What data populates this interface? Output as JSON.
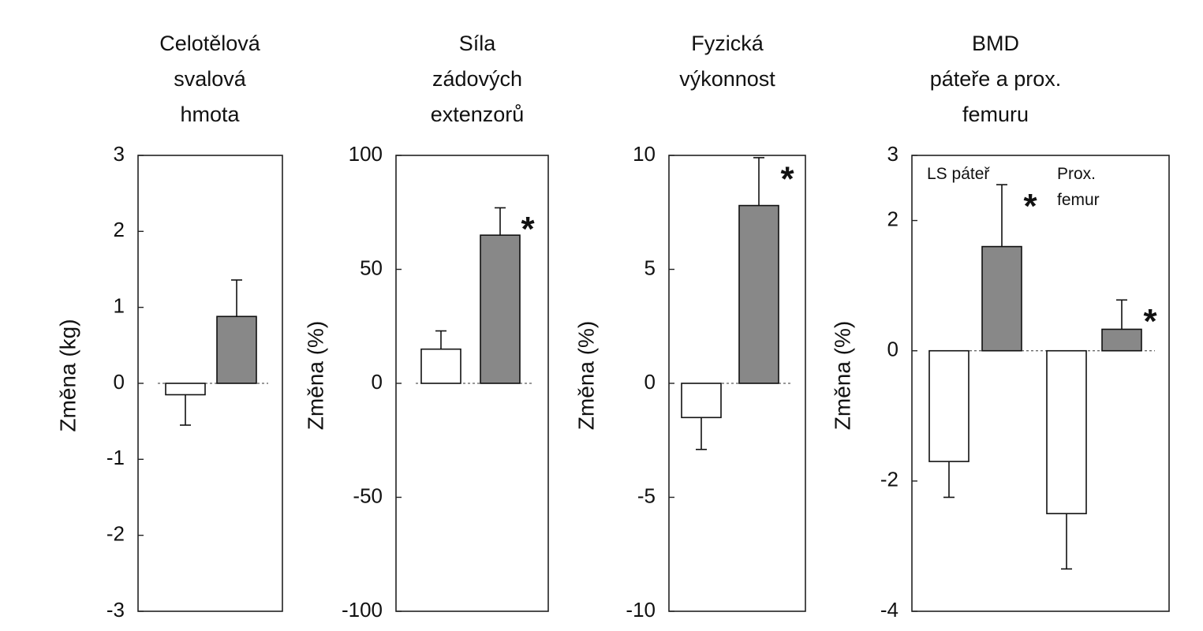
{
  "chart_data": [
    {
      "type": "bar",
      "title_lines": [
        "Celotělová",
        "svalová",
        "hmota"
      ],
      "ylabel": "Změna (kg)",
      "ylim": [
        -3,
        3
      ],
      "yticks": [
        3,
        2,
        1,
        0,
        -1,
        -2,
        -3
      ],
      "ytick_labels": [
        "3",
        "2",
        "1",
        "0",
        "-1",
        "-2",
        "-3"
      ],
      "grid": false,
      "bars": [
        {
          "value": -0.15,
          "error": 0.4,
          "fill": "#ffffff",
          "significant": false
        },
        {
          "value": 0.88,
          "error": 0.48,
          "fill": "#888888",
          "significant": false
        }
      ]
    },
    {
      "type": "bar",
      "title_lines": [
        "Síla",
        "zádových",
        "extenzorů"
      ],
      "ylabel": "Změna (%)",
      "ylim": [
        -100,
        100
      ],
      "yticks": [
        100,
        50,
        0,
        -50,
        -100
      ],
      "ytick_labels": [
        "100",
        "50",
        "0",
        "-50",
        "-100"
      ],
      "grid": false,
      "significance_marker": "*",
      "bars": [
        {
          "value": 15,
          "error": 8,
          "fill": "#ffffff",
          "significant": false
        },
        {
          "value": 65,
          "error": 12,
          "fill": "#888888",
          "significant": true
        }
      ]
    },
    {
      "type": "bar",
      "title_lines": [
        "Fyzická",
        "výkonnost"
      ],
      "ylabel": "Změna (%)",
      "ylim": [
        -10,
        10
      ],
      "yticks": [
        10,
        5,
        0,
        -5,
        -10
      ],
      "ytick_labels": [
        "10",
        "5",
        "0",
        "-5",
        "-10"
      ],
      "grid": false,
      "significance_marker": "*",
      "bars": [
        {
          "value": -1.5,
          "error": 1.4,
          "fill": "#ffffff",
          "significant": false
        },
        {
          "value": 7.8,
          "error": 2.1,
          "fill": "#888888",
          "significant": true
        }
      ]
    },
    {
      "type": "bar",
      "title_lines": [
        "BMD",
        "páteře a prox.",
        "femuru"
      ],
      "ylabel": "Změna (%)",
      "ylim": [
        -4,
        3
      ],
      "yticks": [
        3,
        2,
        0,
        -2,
        -4
      ],
      "ytick_labels": [
        "3",
        "2",
        "0",
        "-2",
        "-4"
      ],
      "grid": false,
      "significance_marker": "*",
      "groups": [
        {
          "label_lines": [
            "LS páteř"
          ]
        },
        {
          "label_lines": [
            "Prox.",
            "femur"
          ]
        }
      ],
      "bars": [
        {
          "group": 0,
          "value": -1.7,
          "error": 0.55,
          "fill": "#ffffff",
          "significant": false
        },
        {
          "group": 0,
          "value": 1.6,
          "error": 0.95,
          "fill": "#888888",
          "significant": true
        },
        {
          "group": 1,
          "value": -2.5,
          "error": 0.85,
          "fill": "#ffffff",
          "significant": false
        },
        {
          "group": 1,
          "value": 0.33,
          "error": 0.45,
          "fill": "#888888",
          "significant": true
        }
      ]
    }
  ]
}
